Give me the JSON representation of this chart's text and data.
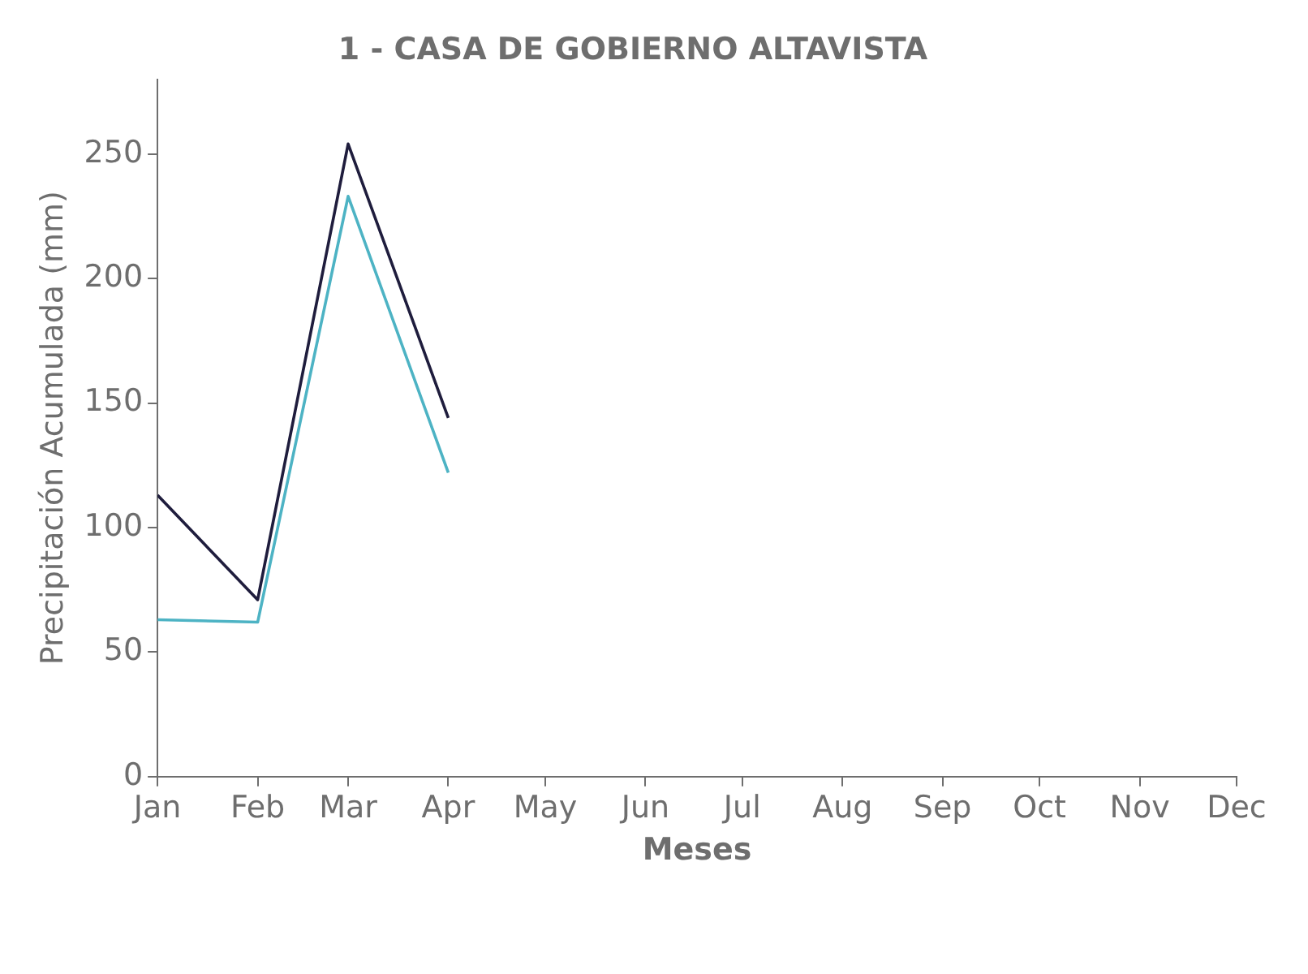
{
  "chart_data": {
    "type": "line",
    "title": "1 - CASA DE GOBIERNO ALTAVISTA",
    "xlabel": "Meses",
    "ylabel": "Precipitación Acumulada (mm)",
    "x": [
      "--01-01",
      "--02-01",
      "--03-01",
      "--04-01"
    ],
    "series": [
      {
        "color": "#1f1d3d",
        "values": [
          113,
          71,
          254,
          144
        ]
      },
      {
        "color": "#4db3c4",
        "values": [
          63,
          62,
          233,
          122
        ]
      }
    ],
    "xlim": [
      "--01-01",
      "--12-01"
    ],
    "xticks": [
      {
        "value": "--01-01",
        "label": "Jan"
      },
      {
        "value": "--02-01",
        "label": "Feb"
      },
      {
        "value": "--03-01",
        "label": "Mar"
      },
      {
        "value": "--04-01",
        "label": "Apr"
      },
      {
        "value": "--05-01",
        "label": "May"
      },
      {
        "value": "--06-01",
        "label": "Jun"
      },
      {
        "value": "--07-01",
        "label": "Jul"
      },
      {
        "value": "--08-01",
        "label": "Aug"
      },
      {
        "value": "--09-01",
        "label": "Sep"
      },
      {
        "value": "--10-01",
        "label": "Oct"
      },
      {
        "value": "--11-01",
        "label": "Nov"
      },
      {
        "value": "--12-01",
        "label": "Dec"
      }
    ],
    "ylim": [
      0,
      280
    ],
    "yticks": [
      0,
      50,
      100,
      150,
      200,
      250
    ],
    "grid": false,
    "legend": false,
    "marker": "none",
    "line_style": "solid"
  }
}
